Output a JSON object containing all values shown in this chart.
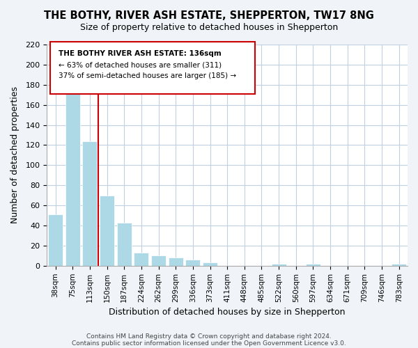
{
  "title": "THE BOTHY, RIVER ASH ESTATE, SHEPPERTON, TW17 8NG",
  "subtitle": "Size of property relative to detached houses in Shepperton",
  "xlabel": "Distribution of detached houses by size in Shepperton",
  "ylabel": "Number of detached properties",
  "categories": [
    "38sqm",
    "75sqm",
    "113sqm",
    "150sqm",
    "187sqm",
    "224sqm",
    "262sqm",
    "299sqm",
    "336sqm",
    "373sqm",
    "411sqm",
    "448sqm",
    "485sqm",
    "522sqm",
    "560sqm",
    "597sqm",
    "634sqm",
    "671sqm",
    "709sqm",
    "746sqm",
    "783sqm"
  ],
  "values": [
    51,
    172,
    124,
    70,
    43,
    13,
    10,
    8,
    6,
    3,
    0,
    0,
    0,
    2,
    0,
    2,
    0,
    0,
    0,
    0,
    2
  ],
  "bar_color": "#add8e6",
  "bar_color_highlight": "#add8e6",
  "vline_x": 2.5,
  "vline_color": "#cc0000",
  "ylim": [
    0,
    220
  ],
  "yticks": [
    0,
    20,
    40,
    60,
    80,
    100,
    120,
    140,
    160,
    180,
    200,
    220
  ],
  "annotation_title": "THE BOTHY RIVER ASH ESTATE: 136sqm",
  "annotation_line1": "← 63% of detached houses are smaller (311)",
  "annotation_line2": "37% of semi-detached houses are larger (185) →",
  "footer1": "Contains HM Land Registry data © Crown copyright and database right 2024.",
  "footer2": "Contains public sector information licensed under the Open Government Licence v3.0.",
  "background_color": "#f0f4f8",
  "plot_bg_color": "#ffffff",
  "grid_color": "#c0d0e0"
}
